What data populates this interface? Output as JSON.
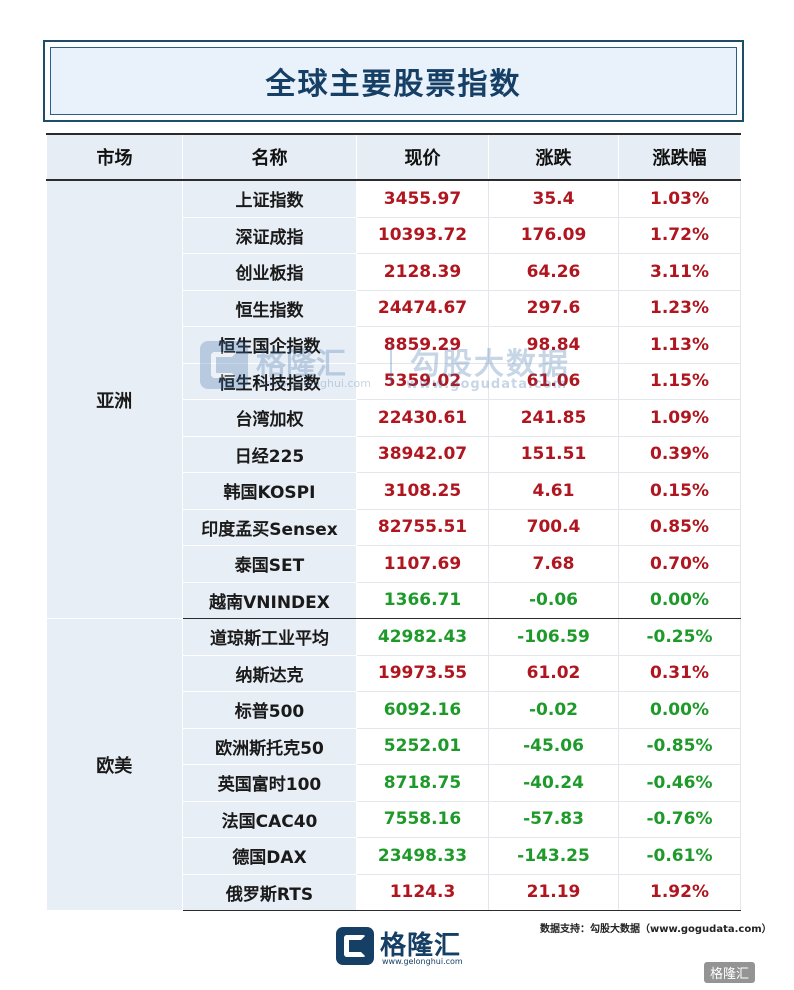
{
  "title": "全球主要股票指数",
  "headers": [
    "市场",
    "名称",
    "现价",
    "涨跌",
    "涨跌幅"
  ],
  "groups": [
    {
      "market": "亚洲",
      "rows": [
        {
          "name": "上证指数",
          "price": "3455.97",
          "change": "35.4",
          "pct": "1.03%",
          "dir": "up"
        },
        {
          "name": "深证成指",
          "price": "10393.72",
          "change": "176.09",
          "pct": "1.72%",
          "dir": "up"
        },
        {
          "name": "创业板指",
          "price": "2128.39",
          "change": "64.26",
          "pct": "3.11%",
          "dir": "up"
        },
        {
          "name": "恒生指数",
          "price": "24474.67",
          "change": "297.6",
          "pct": "1.23%",
          "dir": "up"
        },
        {
          "name": "恒生国企指数",
          "price": "8859.29",
          "change": "98.84",
          "pct": "1.13%",
          "dir": "up"
        },
        {
          "name": "恒生科技指数",
          "price": "5359.02",
          "change": "61.06",
          "pct": "1.15%",
          "dir": "up"
        },
        {
          "name": "台湾加权",
          "price": "22430.61",
          "change": "241.85",
          "pct": "1.09%",
          "dir": "up"
        },
        {
          "name": "日经225",
          "price": "38942.07",
          "change": "151.51",
          "pct": "0.39%",
          "dir": "up"
        },
        {
          "name": "韩国KOSPI",
          "price": "3108.25",
          "change": "4.61",
          "pct": "0.15%",
          "dir": "up"
        },
        {
          "name": "印度孟买Sensex",
          "price": "82755.51",
          "change": "700.4",
          "pct": "0.85%",
          "dir": "up"
        },
        {
          "name": "泰国SET",
          "price": "1107.69",
          "change": "7.68",
          "pct": "0.70%",
          "dir": "up"
        },
        {
          "name": "越南VNINDEX",
          "price": "1366.71",
          "change": "-0.06",
          "pct": "0.00%",
          "dir": "down"
        }
      ]
    },
    {
      "market": "欧美",
      "rows": [
        {
          "name": "道琼斯工业平均",
          "price": "42982.43",
          "change": "-106.59",
          "pct": "-0.25%",
          "dir": "down"
        },
        {
          "name": "纳斯达克",
          "price": "19973.55",
          "change": "61.02",
          "pct": "0.31%",
          "dir": "up"
        },
        {
          "name": "标普500",
          "price": "6092.16",
          "change": "-0.02",
          "pct": "0.00%",
          "dir": "down"
        },
        {
          "name": "欧洲斯托克50",
          "price": "5252.01",
          "change": "-45.06",
          "pct": "-0.85%",
          "dir": "down"
        },
        {
          "name": "英国富时100",
          "price": "8718.75",
          "change": "-40.24",
          "pct": "-0.46%",
          "dir": "down"
        },
        {
          "name": "法国CAC40",
          "price": "7558.16",
          "change": "-57.83",
          "pct": "-0.76%",
          "dir": "down"
        },
        {
          "name": "德国DAX",
          "price": "23498.33",
          "change": "-143.25",
          "pct": "-0.61%",
          "dir": "down"
        },
        {
          "name": "俄罗斯RTS",
          "price": "1124.3",
          "change": "21.19",
          "pct": "1.92%",
          "dir": "up"
        }
      ]
    }
  ],
  "colors": {
    "up": "#b0161f",
    "down": "#1e9a2a",
    "title": "#163f66"
  },
  "watermark": {
    "brand_cn": "格隆汇",
    "brand_en": "www.gelonghui.com",
    "data_cn": "勾股大数据",
    "data_url": "www.gogudata.com"
  },
  "footer": {
    "source": "数据支持：勾股大数据（www.gogudata.com）",
    "logo_cn": "格隆汇",
    "logo_en": "www.gelonghui.com",
    "corner": "格隆汇"
  }
}
